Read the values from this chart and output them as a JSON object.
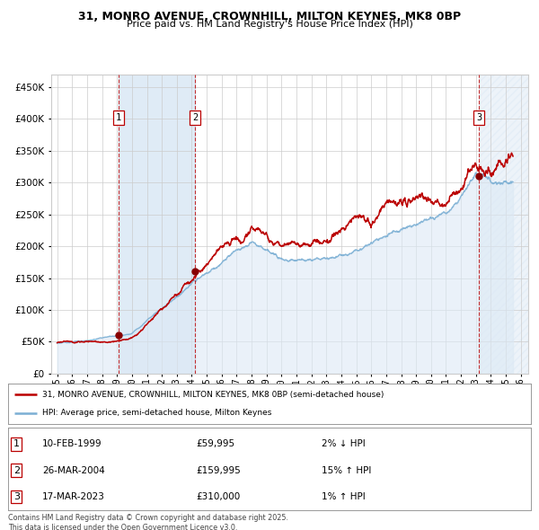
{
  "title_line1": "31, MONRO AVENUE, CROWNHILL, MILTON KEYNES, MK8 0BP",
  "title_line2": "Price paid vs. HM Land Registry's House Price Index (HPI)",
  "sale_prices": [
    59995,
    159995,
    310000
  ],
  "sale_labels": [
    "1",
    "2",
    "3"
  ],
  "legend_line1": "31, MONRO AVENUE, CROWNHILL, MILTON KEYNES, MK8 0BP (semi-detached house)",
  "legend_line2": "HPI: Average price, semi-detached house, Milton Keynes",
  "table_rows": [
    {
      "num": "1",
      "date": "10-FEB-1999",
      "price": "£59,995",
      "hpi": "2% ↓ HPI"
    },
    {
      "num": "2",
      "date": "26-MAR-2004",
      "price": "£159,995",
      "hpi": "15% ↑ HPI"
    },
    {
      "num": "3",
      "date": "17-MAR-2023",
      "price": "£310,000",
      "hpi": "1% ↑ HPI"
    }
  ],
  "footer": "Contains HM Land Registry data © Crown copyright and database right 2025.\nThis data is licensed under the Open Government Licence v3.0.",
  "hpi_color": "#7bafd4",
  "price_color": "#bb0000",
  "sale_marker_color": "#880000",
  "background_color": "#ffffff",
  "grid_color": "#cccccc",
  "hpi_fill_color": "#dce9f5",
  "ylim": [
    0,
    470000
  ],
  "yticks": [
    0,
    50000,
    100000,
    150000,
    200000,
    250000,
    300000,
    350000,
    400000,
    450000
  ],
  "xlim_start": 1994.6,
  "xlim_end": 2026.5,
  "sale_years_float": [
    1999.11,
    2004.22,
    2023.22
  ],
  "hpi_start_year": 1995.0,
  "hpi_end_year": 2025.5
}
